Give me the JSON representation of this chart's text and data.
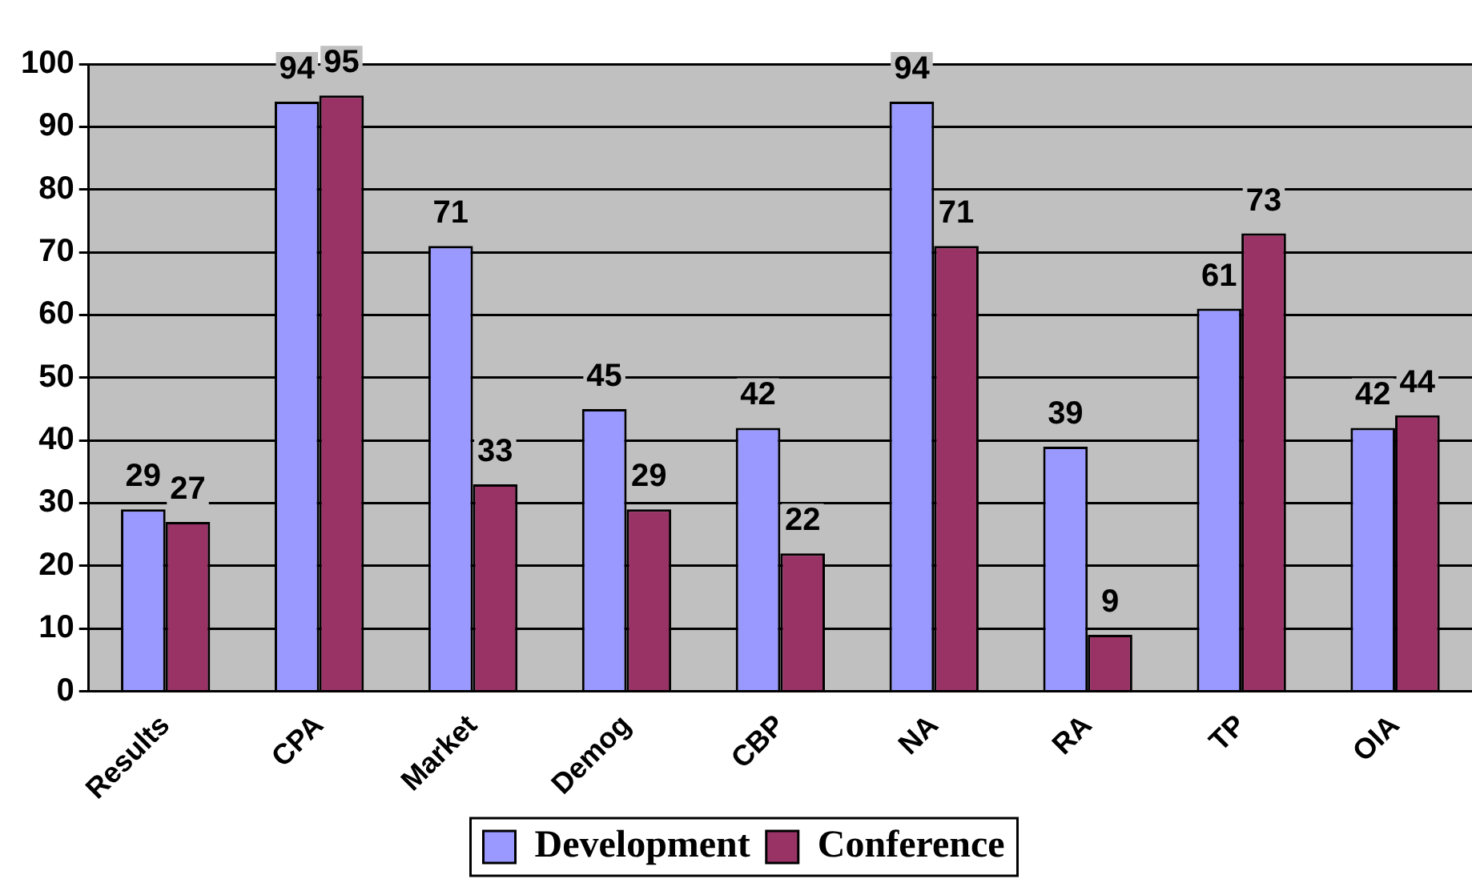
{
  "chart_data": {
    "type": "bar",
    "categories": [
      "Results",
      "CPA",
      "Market",
      "Demog",
      "CBP",
      "NA",
      "RA",
      "TP",
      "OIA"
    ],
    "series": [
      {
        "name": "Development",
        "color": "#9999ff",
        "values": [
          29,
          94,
          71,
          45,
          42,
          94,
          39,
          61,
          42
        ]
      },
      {
        "name": "Conference",
        "color": "#993366",
        "values": [
          27,
          95,
          33,
          29,
          22,
          71,
          9,
          73,
          44
        ]
      }
    ],
    "ylim": [
      0,
      100
    ],
    "yticks": [
      0,
      10,
      20,
      30,
      40,
      50,
      60,
      70,
      80,
      90,
      100
    ],
    "grid": "y",
    "legend": "bottom",
    "data_labels": true
  }
}
